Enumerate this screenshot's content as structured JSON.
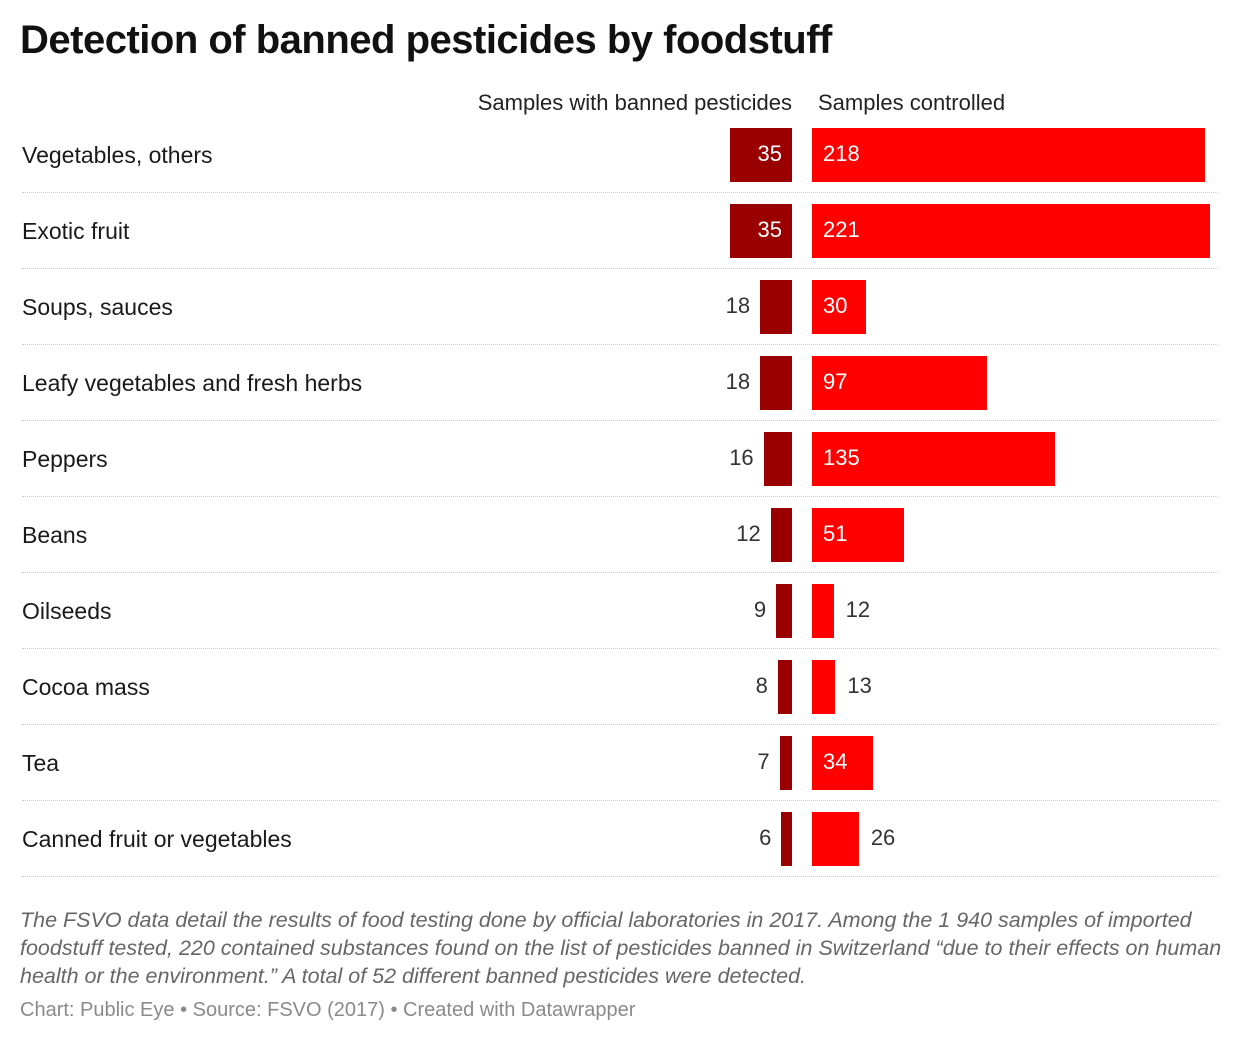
{
  "title": "Detection of banned pesticides by foodstuff",
  "chart_data": {
    "type": "bar",
    "title": "Detection of banned pesticides by foodstuff",
    "categories": [
      "Vegetables, others",
      "Exotic fruit",
      "Soups, sauces",
      "Leafy vegetables and fresh herbs",
      "Peppers",
      "Beans",
      "Oilseeds",
      "Cocoa mass",
      "Tea",
      "Canned fruit or vegetables"
    ],
    "series": [
      {
        "name": "Samples with banned pesticides",
        "values": [
          35,
          35,
          18,
          18,
          16,
          12,
          9,
          8,
          7,
          6
        ],
        "color": "#9a0000"
      },
      {
        "name": "Samples controlled",
        "values": [
          218,
          221,
          30,
          97,
          135,
          51,
          12,
          13,
          34,
          26
        ],
        "color": "#ff0000"
      }
    ]
  },
  "note": "The FSVO data detail the results of food testing done by official laboratories in 2017. Among the 1 940 samples of imported foodstuff tested, 220 contained substances found on the list of pesticides banned in Switzerland “due to their effects on human health or the environment.” A total of 52 different banned pesticides were detected.",
  "credits": "Chart: Public Eye • Source: FSVO (2017) • Created with Datawrapper"
}
